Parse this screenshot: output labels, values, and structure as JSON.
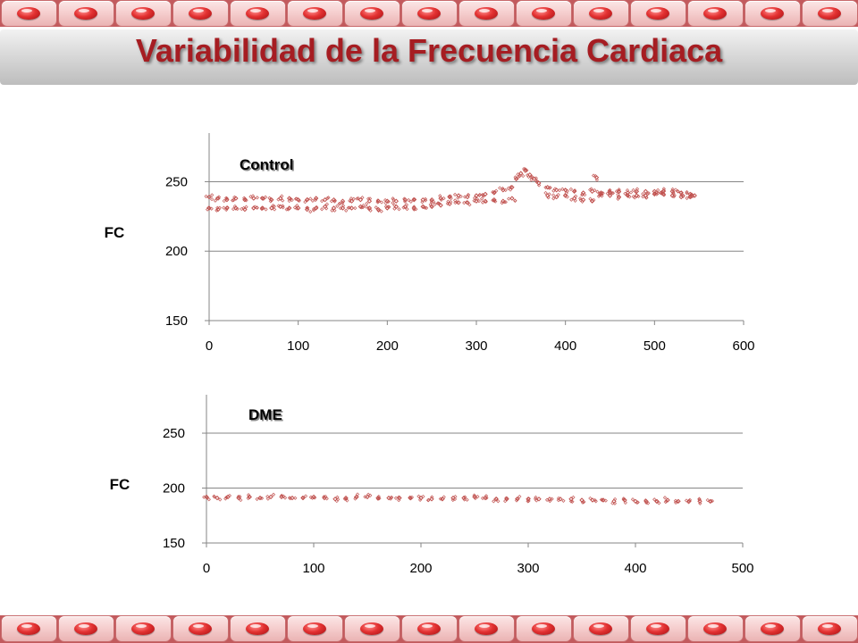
{
  "title": "Variabilidad de la Frecuencia Cardiaca",
  "colors": {
    "title": "#a61d22",
    "band": "#c25a5d",
    "marker": "#c0504d",
    "grid": "#868686"
  },
  "decor": {
    "tile_count": 15,
    "tile_icon": "red-pill-icon"
  },
  "chart_data": [
    {
      "type": "scatter",
      "series_label": "Control",
      "ylabel": "FC",
      "xlabel": "",
      "xlim": [
        0,
        600
      ],
      "ylim": [
        150,
        285
      ],
      "xticks": [
        0,
        100,
        200,
        300,
        400,
        500,
        600
      ],
      "yticks": [
        150,
        200,
        250
      ],
      "grid": true,
      "marker_color": "#c0504d",
      "series": [
        {
          "x": [
            0,
            10,
            20,
            30,
            40,
            50,
            60,
            70,
            80,
            90,
            100,
            110,
            120,
            130,
            140,
            150,
            160,
            170,
            180,
            190,
            200,
            210,
            220,
            230,
            240,
            250,
            260,
            270,
            280,
            290,
            300,
            310,
            320,
            330,
            340,
            345,
            350,
            355,
            360,
            365,
            370,
            380,
            390,
            400,
            410,
            420,
            430,
            440,
            450,
            460,
            470,
            480,
            490,
            500,
            510,
            520,
            530,
            540,
            545,
            0,
            10,
            20,
            30,
            40,
            50,
            60,
            70,
            80,
            90,
            100,
            110,
            120,
            130,
            140,
            150,
            160,
            170,
            180,
            190,
            200,
            210,
            220,
            230,
            240,
            250,
            260,
            270,
            280,
            290,
            300,
            310,
            320,
            330,
            340,
            380,
            390,
            400,
            410,
            420,
            430,
            435,
            440,
            450,
            460,
            470,
            480,
            490,
            500,
            510,
            520,
            530,
            540
          ],
          "y": [
            239,
            238,
            237,
            238,
            237,
            238,
            238,
            237,
            238,
            238,
            237,
            237,
            238,
            237,
            237,
            236,
            236,
            237,
            236,
            236,
            236,
            236,
            237,
            237,
            237,
            237,
            238,
            239,
            240,
            239,
            240,
            241,
            242,
            244,
            246,
            252,
            256,
            258,
            255,
            252,
            249,
            246,
            244,
            244,
            243,
            242,
            243,
            242,
            242,
            243,
            242,
            243,
            243,
            243,
            243,
            243,
            242,
            241,
            240,
            231,
            230,
            231,
            231,
            230,
            231,
            231,
            231,
            232,
            231,
            231,
            230,
            231,
            232,
            231,
            231,
            231,
            232,
            231,
            230,
            231,
            232,
            232,
            231,
            232,
            232,
            233,
            234,
            235,
            235,
            236,
            236,
            237,
            236,
            238,
            240,
            239,
            240,
            238,
            237,
            236,
            253,
            241,
            240,
            239,
            240,
            240,
            240,
            241,
            241,
            240,
            239,
            239
          ]
        }
      ]
    },
    {
      "type": "scatter",
      "series_label": "DME",
      "ylabel": "FC",
      "xlabel": "",
      "xlim": [
        0,
        500
      ],
      "ylim": [
        150,
        285
      ],
      "xticks": [
        0,
        100,
        200,
        300,
        400,
        500
      ],
      "yticks": [
        150,
        200,
        250
      ],
      "grid": true,
      "marker_color": "#c0504d",
      "series": [
        {
          "x": [
            0,
            10,
            20,
            30,
            40,
            50,
            60,
            70,
            80,
            90,
            100,
            110,
            120,
            130,
            140,
            150,
            160,
            170,
            180,
            190,
            200,
            210,
            220,
            230,
            240,
            250,
            260,
            270,
            280,
            290,
            300,
            310,
            320,
            330,
            340,
            350,
            360,
            370,
            380,
            390,
            400,
            410,
            420,
            430,
            440,
            450,
            460,
            470
          ],
          "y": [
            192,
            191,
            192,
            191,
            192,
            191,
            192,
            192,
            191,
            191,
            192,
            191,
            190,
            191,
            192,
            192,
            191,
            191,
            191,
            191,
            191,
            190,
            190,
            191,
            191,
            192,
            191,
            190,
            190,
            190,
            190,
            190,
            190,
            190,
            190,
            189,
            189,
            189,
            188,
            189,
            188,
            188,
            188,
            189,
            188,
            188,
            188,
            188
          ]
        }
      ]
    }
  ]
}
